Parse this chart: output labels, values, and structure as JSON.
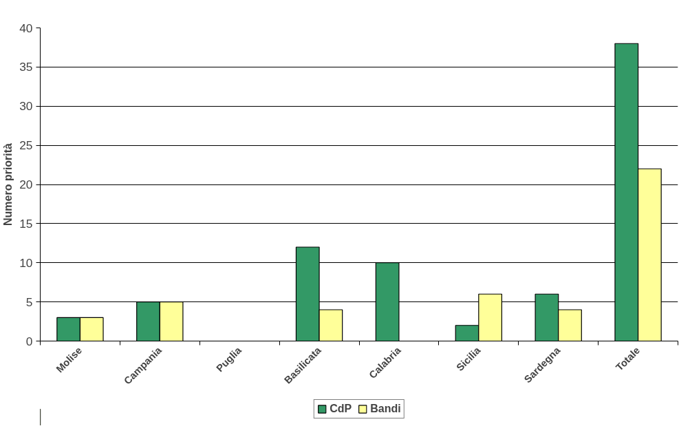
{
  "chart_data": {
    "type": "bar",
    "ylabel": "Numero priorità",
    "categories": [
      "Molise",
      "Campania",
      "Puglia",
      "Basilicata",
      "Calabria",
      "Sicilia",
      "Sardegna",
      "Totale"
    ],
    "series": [
      {
        "name": "CdP",
        "color": "#339966",
        "values": [
          3,
          5,
          0,
          12,
          10,
          2,
          6,
          38
        ]
      },
      {
        "name": "Bandi",
        "color": "#ffff99",
        "values": [
          3,
          5,
          0,
          4,
          0,
          6,
          4,
          22
        ]
      }
    ],
    "ylim": [
      0,
      40
    ],
    "yticks": [
      0,
      5,
      10,
      15,
      20,
      25,
      30,
      35,
      40
    ],
    "grid": "y",
    "legend": "bottom"
  }
}
